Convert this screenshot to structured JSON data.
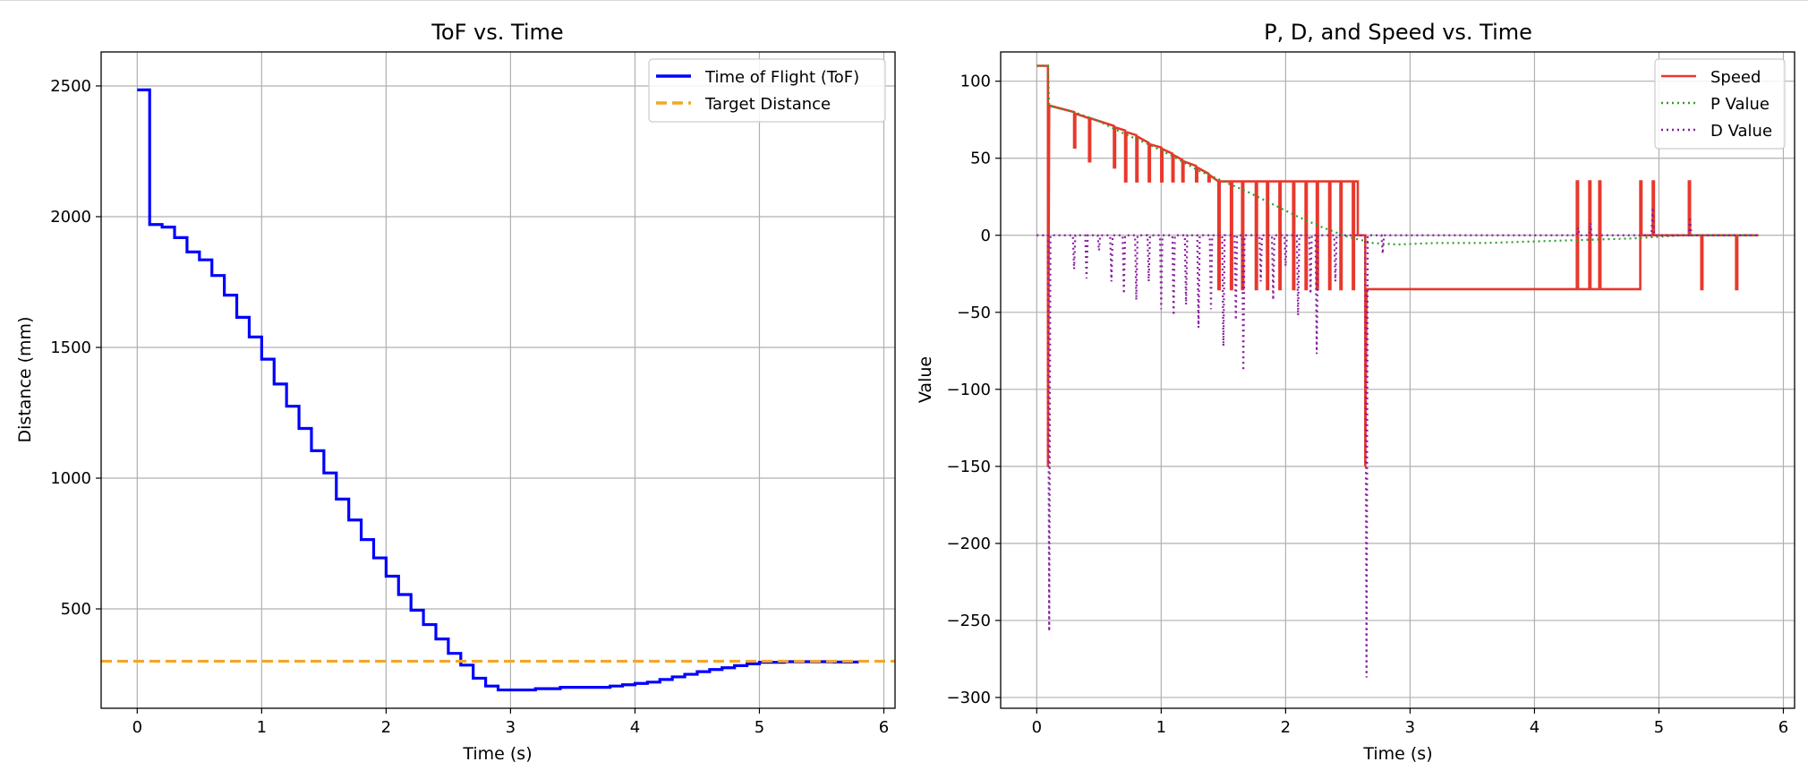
{
  "colors": {
    "tof": "#0000ff",
    "target": "#f5a623",
    "speed": "#e8382c",
    "p": "#2ca02c",
    "d": "#8a1fa0",
    "grid": "#b0b0b0"
  },
  "chart_data": [
    {
      "type": "line",
      "title": "ToF vs. Time",
      "xlabel": "Time (s)",
      "ylabel": "Distance (mm)",
      "xlim": [
        -0.29,
        6.09
      ],
      "ylim": [
        120,
        2630
      ],
      "xticks": [
        0,
        1,
        2,
        3,
        4,
        5,
        6
      ],
      "yticks": [
        500,
        1000,
        1500,
        2000,
        2500
      ],
      "grid": true,
      "legend_position": "upper right",
      "series": [
        {
          "name": "Time of Flight (ToF)",
          "style": "step-solid",
          "x": [
            0,
            0.09,
            0.1,
            0.2,
            0.3,
            0.4,
            0.5,
            0.6,
            0.7,
            0.8,
            0.9,
            1.0,
            1.1,
            1.2,
            1.3,
            1.4,
            1.5,
            1.6,
            1.7,
            1.8,
            1.9,
            2.0,
            2.1,
            2.2,
            2.3,
            2.4,
            2.5,
            2.6,
            2.7,
            2.8,
            2.9,
            3.0,
            3.2,
            3.4,
            3.6,
            3.8,
            3.9,
            4.0,
            4.1,
            4.2,
            4.3,
            4.4,
            4.5,
            4.6,
            4.7,
            4.8,
            4.9,
            5.0,
            5.2,
            5.4,
            5.6,
            5.8
          ],
          "y": [
            2485,
            2485,
            1970,
            1960,
            1920,
            1865,
            1835,
            1775,
            1700,
            1615,
            1540,
            1455,
            1360,
            1275,
            1190,
            1105,
            1020,
            920,
            840,
            765,
            695,
            625,
            555,
            495,
            440,
            385,
            330,
            285,
            235,
            205,
            190,
            190,
            195,
            200,
            200,
            205,
            210,
            215,
            220,
            230,
            240,
            250,
            260,
            268,
            275,
            283,
            290,
            296,
            298,
            298,
            297,
            297
          ]
        },
        {
          "name": "Target Distance",
          "style": "dashed",
          "x": [
            -0.29,
            6.09
          ],
          "y": [
            300,
            300
          ]
        }
      ]
    },
    {
      "type": "line",
      "title": "P, D, and Speed vs. Time",
      "xlabel": "Time (s)",
      "ylabel": "Value",
      "xlim": [
        -0.29,
        6.09
      ],
      "ylim": [
        -307,
        119
      ],
      "xticks": [
        0,
        1,
        2,
        3,
        4,
        5,
        6
      ],
      "yticks": [
        -300,
        -250,
        -200,
        -150,
        -100,
        -50,
        0,
        50,
        100
      ],
      "grid": true,
      "legend_position": "upper right",
      "series": [
        {
          "name": "Speed",
          "style": "solid",
          "x": [
            0,
            0.09,
            0.09,
            0.1,
            0.11,
            0.11,
            0.3,
            0.3,
            0.31,
            0.31,
            0.42,
            0.42,
            0.43,
            0.43,
            0.62,
            0.62,
            0.63,
            0.63,
            0.71,
            0.71,
            0.72,
            0.72,
            0.8,
            0.8,
            0.81,
            0.81,
            0.9,
            0.9,
            0.91,
            0.91,
            1.0,
            1.0,
            1.01,
            1.01,
            1.09,
            1.09,
            1.1,
            1.1,
            1.17,
            1.17,
            1.18,
            1.18,
            1.28,
            1.28,
            1.29,
            1.29,
            1.38,
            1.38,
            1.39,
            1.39,
            1.46,
            1.46,
            1.47,
            1.47,
            1.56,
            1.56,
            1.57,
            1.57,
            1.65,
            1.65,
            1.66,
            1.66,
            1.76,
            1.76,
            1.77,
            1.77,
            1.85,
            1.85,
            1.86,
            1.86,
            1.95,
            1.95,
            1.96,
            1.96,
            2.06,
            2.06,
            2.07,
            2.07,
            2.16,
            2.16,
            2.17,
            2.17,
            2.25,
            2.25,
            2.26,
            2.26,
            2.35,
            2.35,
            2.36,
            2.36,
            2.44,
            2.44,
            2.45,
            2.45,
            2.54,
            2.54,
            2.55,
            2.55,
            2.58,
            2.58,
            2.64,
            2.64,
            2.65,
            2.66,
            2.66,
            4.34,
            4.34,
            4.35,
            4.35,
            4.44,
            4.44,
            4.45,
            4.45,
            4.52,
            4.52,
            4.53,
            4.53,
            4.85,
            4.85,
            4.86,
            4.86,
            4.95,
            4.95,
            4.96,
            4.96,
            5.24,
            5.24,
            5.25,
            5.25,
            5.34,
            5.34,
            5.35,
            5.35,
            5.62,
            5.62,
            5.63,
            5.63,
            5.8
          ],
          "y": [
            110,
            110,
            -150,
            84,
            84,
            84,
            80,
            57,
            57,
            79,
            76,
            48,
            48,
            76,
            71,
            44,
            44,
            70,
            68,
            35,
            35,
            67,
            65,
            35,
            35,
            64,
            60,
            35,
            35,
            59,
            57,
            35,
            35,
            56,
            53,
            35,
            35,
            52,
            49,
            35,
            35,
            48,
            45,
            35,
            35,
            44,
            40,
            35,
            35,
            39,
            35,
            -35,
            -35,
            35,
            35,
            -35,
            -35,
            35,
            35,
            -35,
            -35,
            35,
            35,
            -35,
            -35,
            35,
            35,
            -35,
            -35,
            35,
            35,
            -35,
            -35,
            35,
            35,
            -35,
            -35,
            35,
            35,
            -35,
            -35,
            35,
            35,
            -35,
            -35,
            35,
            35,
            -35,
            -35,
            35,
            35,
            -35,
            -35,
            35,
            35,
            -35,
            -35,
            35,
            35,
            0,
            0,
            -150,
            -35,
            -35,
            -35,
            -35,
            35,
            35,
            -35,
            -35,
            35,
            35,
            -35,
            -35,
            35,
            35,
            -35,
            -35,
            35,
            35,
            0,
            0,
            35,
            35,
            0,
            0,
            35,
            35,
            0,
            0,
            -35,
            -35,
            0,
            0,
            -35,
            -35,
            0,
            0
          ]
        },
        {
          "name": "P Value",
          "style": "dotted",
          "x": [
            0,
            0.09,
            0.1,
            0.3,
            0.5,
            0.7,
            0.9,
            1.1,
            1.3,
            1.5,
            1.7,
            1.9,
            2.1,
            2.3,
            2.5,
            2.6,
            2.7,
            2.9,
            3.2,
            3.6,
            4.0,
            4.4,
            4.8,
            5.0,
            5.2,
            5.4,
            5.6,
            5.8
          ],
          "y": [
            110,
            110,
            84,
            80,
            74,
            66,
            59,
            51,
            42,
            35,
            28,
            20,
            12,
            5,
            -1,
            -3,
            -5,
            -6,
            -5,
            -5,
            -4,
            -3,
            -2,
            -1,
            0,
            0,
            0,
            0
          ]
        },
        {
          "name": "D Value",
          "style": "dotted",
          "x": [
            0,
            0.09,
            0.1,
            0.11,
            0.29,
            0.3,
            0.31,
            0.39,
            0.4,
            0.41,
            0.49,
            0.5,
            0.51,
            0.59,
            0.6,
            0.61,
            0.69,
            0.7,
            0.71,
            0.79,
            0.8,
            0.81,
            0.89,
            0.9,
            0.91,
            0.99,
            1.0,
            1.01,
            1.09,
            1.1,
            1.11,
            1.19,
            1.2,
            1.21,
            1.29,
            1.3,
            1.31,
            1.39,
            1.4,
            1.41,
            1.49,
            1.5,
            1.51,
            1.59,
            1.6,
            1.61,
            1.65,
            1.66,
            1.67,
            1.79,
            1.8,
            1.81,
            1.89,
            1.9,
            1.91,
            1.99,
            2.0,
            2.01,
            2.09,
            2.1,
            2.11,
            2.19,
            2.2,
            2.21,
            2.24,
            2.25,
            2.26,
            2.39,
            2.4,
            2.41,
            2.64,
            2.65,
            2.66,
            2.77,
            2.78,
            2.79,
            4.34,
            4.35,
            4.36,
            4.44,
            4.45,
            4.46,
            4.94,
            4.95,
            4.96,
            5.24,
            5.25,
            5.26,
            5.8
          ],
          "y": [
            0,
            0,
            -257,
            0,
            0,
            -22,
            0,
            0,
            -28,
            0,
            0,
            -10,
            0,
            0,
            -30,
            0,
            0,
            -38,
            0,
            0,
            -42,
            0,
            0,
            -30,
            0,
            0,
            -48,
            0,
            0,
            -52,
            0,
            0,
            -45,
            0,
            0,
            -60,
            0,
            0,
            -48,
            0,
            0,
            -72,
            0,
            0,
            -55,
            0,
            0,
            -88,
            0,
            0,
            -30,
            0,
            0,
            -42,
            0,
            0,
            -20,
            0,
            0,
            -52,
            0,
            0,
            -38,
            0,
            0,
            -77,
            0,
            0,
            -30,
            0,
            0,
            -287,
            0,
            0,
            -12,
            0,
            0,
            5,
            0,
            0,
            8,
            0,
            0,
            18,
            0,
            0,
            12,
            0,
            0
          ]
        }
      ]
    }
  ]
}
